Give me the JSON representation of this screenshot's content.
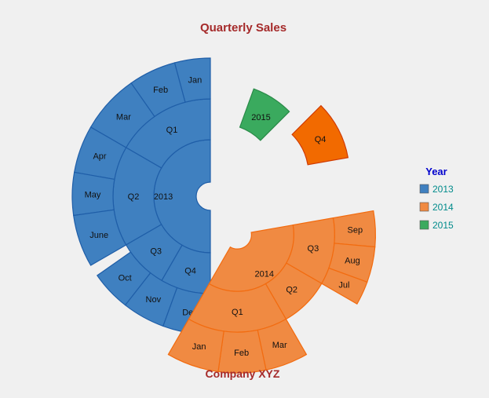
{
  "chart_data": {
    "type": "sunburst",
    "title": "Quarterly Sales",
    "subtitle": "Company XYZ",
    "legend": {
      "title": "Year",
      "placement": "right",
      "items": [
        {
          "label": "2013",
          "color": "#3f80c0"
        },
        {
          "label": "2014",
          "color": "#f08a42"
        },
        {
          "label": "2015",
          "color": "#3aaa5e"
        }
      ]
    },
    "colors": {
      "title": "#a52a2a",
      "subtitle": "#a52a2a",
      "legend_title": "#0000cd",
      "legend_text": "#008b8b"
    },
    "hierarchy": [
      {
        "name": "2013",
        "color": "#3f80c0",
        "stroke": "#1f5ea8",
        "explode": false,
        "children": [
          {
            "name": "Q1",
            "children": [
              {
                "name": "Jan",
                "value": 1
              },
              {
                "name": "Feb",
                "value": 1
              },
              {
                "name": "Mar",
                "value": 1
              }
            ]
          },
          {
            "name": "Q2",
            "children": [
              {
                "name": "Apr",
                "value": 1
              },
              {
                "name": "May",
                "value": 1
              },
              {
                "name": "June",
                "value": 1
              }
            ]
          },
          {
            "name": "Q3",
            "children": []
          },
          {
            "name": "Q4",
            "children": [
              {
                "name": "Oct",
                "value": 1
              },
              {
                "name": "Nov",
                "value": 1
              },
              {
                "name": "Dec",
                "value": 1
              }
            ]
          }
        ]
      },
      {
        "name": "2015",
        "color": "#3aaa5e",
        "stroke": "#2a8a48",
        "explode": true,
        "children": []
      },
      {
        "name": "Q4",
        "color": "#f26a00",
        "stroke": "#d03a00",
        "explode": true,
        "children": []
      },
      {
        "name": "2014",
        "color": "#f08a42",
        "stroke": "#f26b0f",
        "explode": true,
        "children": [
          {
            "name": "Q3",
            "children": [
              {
                "name": "Sep",
                "value": 1
              },
              {
                "name": "Aug",
                "value": 1
              },
              {
                "name": "Jul",
                "value": 1
              }
            ]
          },
          {
            "name": "Q2",
            "children": []
          },
          {
            "name": "Q1",
            "children": [
              {
                "name": "Mar",
                "value": 1
              },
              {
                "name": "Feb",
                "value": 1
              },
              {
                "name": "Jan",
                "value": 1
              }
            ]
          }
        ]
      }
    ]
  }
}
